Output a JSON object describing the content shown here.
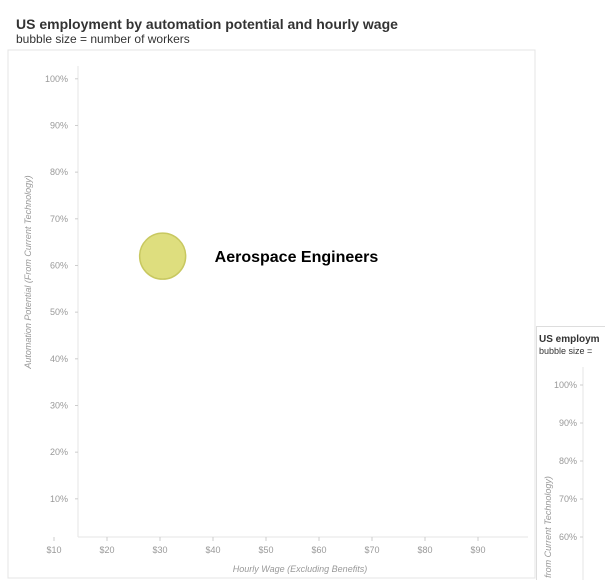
{
  "chart_data": {
    "type": "scatter",
    "title": "US employment by automation potential and hourly wage",
    "subtitle": "bubble size = number of workers",
    "xlabel": "Hourly Wage (Excluding Benefits)",
    "ylabel": "Automation Potential (From Current Technology)",
    "x_ticks": [
      "$10",
      "$20",
      "$30",
      "$40",
      "$50",
      "$60",
      "$70",
      "$80",
      "$90"
    ],
    "y_ticks": [
      "10%",
      "20%",
      "30%",
      "40%",
      "50%",
      "60%",
      "70%",
      "80%",
      "90%",
      "100%"
    ],
    "xlim": [
      5,
      95
    ],
    "ylim": [
      0,
      100
    ],
    "grid": false,
    "points": [
      {
        "x": 30.5,
        "y": 62,
        "color": "#dede7e",
        "stroke": "#c8c860",
        "annotation": "Aerospace Engineers"
      }
    ]
  },
  "inset": {
    "title": "US employm",
    "subtitle": "bubble size =",
    "ylabel": "from Current Technology)",
    "y_ticks": [
      "100%",
      "90%",
      "80%",
      "70%",
      "60%"
    ]
  }
}
